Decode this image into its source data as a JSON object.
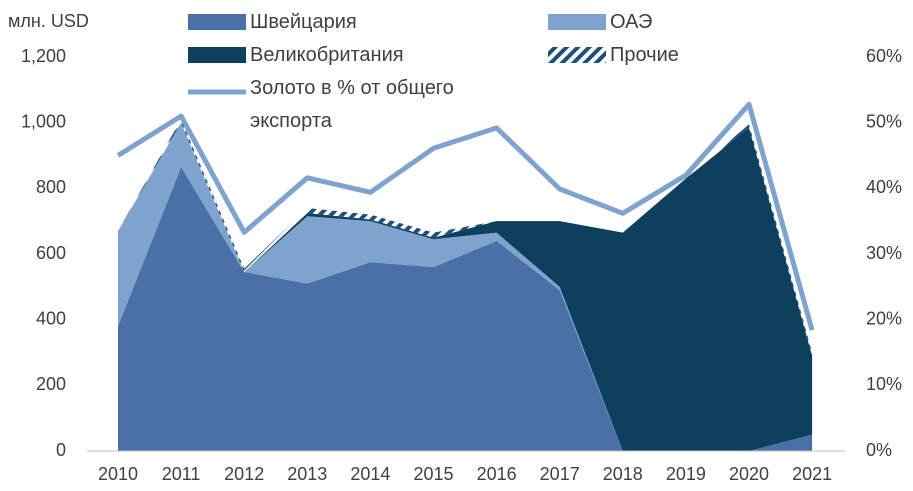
{
  "chart_data": {
    "type": "area",
    "y_label": "млн. USD",
    "categories": [
      "2010",
      "2011",
      "2012",
      "2013",
      "2014",
      "2015",
      "2016",
      "2017",
      "2018",
      "2019",
      "2020",
      "2021"
    ],
    "series": [
      {
        "name": "Швейцария",
        "color": "#4a70a8",
        "values": [
          380,
          865,
          545,
          510,
          575,
          560,
          640,
          490,
          0,
          0,
          0,
          50
        ]
      },
      {
        "name": "ОАЭ",
        "color": "#7fa3cc",
        "values": [
          290,
          135,
          0,
          205,
          125,
          85,
          25,
          10,
          0,
          0,
          0,
          0
        ]
      },
      {
        "name": "Великобритания",
        "color": "#0d3f5e",
        "values": [
          0,
          0,
          0,
          10,
          5,
          5,
          35,
          200,
          665,
          830,
          985,
          240
        ]
      },
      {
        "name": "Прочие",
        "color": "#1f4e79",
        "hatch": true,
        "values": [
          0,
          10,
          10,
          15,
          15,
          15,
          0,
          0,
          0,
          0,
          10,
          10
        ]
      },
      {
        "name": "Золото в % от общего экспорта",
        "color": "#7fa3cc",
        "type": "line",
        "axis": "y2",
        "values": [
          45,
          51,
          33.3,
          41.6,
          39.4,
          46.1,
          49.2,
          39.9,
          36.2,
          42,
          52.8,
          18.4
        ]
      }
    ],
    "ylim": [
      0,
      1200
    ],
    "yticks": [
      0,
      200,
      400,
      600,
      800,
      {
        "value": 1000,
        "label": "1,000"
      },
      {
        "value": 1200,
        "label": "1,200"
      }
    ],
    "y2lim": [
      0,
      60
    ],
    "y2ticks": [
      {
        "value": 0,
        "label": "0%"
      },
      {
        "value": 10,
        "label": "10%"
      },
      {
        "value": 20,
        "label": "20%"
      },
      {
        "value": 30,
        "label": "30%"
      },
      {
        "value": 40,
        "label": "40%"
      },
      {
        "value": 50,
        "label": "50%"
      },
      {
        "value": 60,
        "label": "60%"
      }
    ],
    "grid": false
  }
}
